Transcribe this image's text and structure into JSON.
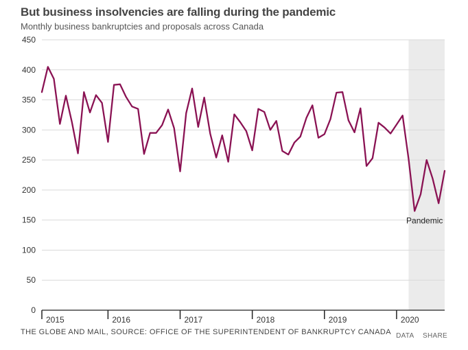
{
  "header": {
    "title": "But business insolvencies are falling during the pandemic",
    "subtitle": "Monthly business bankruptcies and proposals across Canada"
  },
  "footer": {
    "source": "THE GLOBE AND MAIL, SOURCE: OFFICE OF THE SUPERINTENDENT OF BANKRUPTCY CANADA",
    "data_link": "DATA",
    "share_link": "SHARE"
  },
  "colors": {
    "line": "#8a1253",
    "shade": "#ebebeb",
    "grid": "#d9d9d9",
    "axis": "#222222"
  },
  "chart_data": {
    "type": "line",
    "title": "But business insolvencies are falling during the pandemic",
    "subtitle": "Monthly business bankruptcies and proposals across Canada",
    "xlabel": "",
    "ylabel": "",
    "ylim": [
      0,
      450
    ],
    "yticks": [
      0,
      50,
      100,
      150,
      200,
      250,
      300,
      350,
      400,
      450
    ],
    "x_range": [
      0,
      67
    ],
    "xticks": [
      {
        "label": "2015",
        "month_index": 0
      },
      {
        "label": "2016",
        "month_index": 11
      },
      {
        "label": "2017",
        "month_index": 23
      },
      {
        "label": "2018",
        "month_index": 35
      },
      {
        "label": "2019",
        "month_index": 47
      },
      {
        "label": "2020",
        "month_index": 59
      }
    ],
    "grid": true,
    "shaded_region": {
      "label": "Pandemic",
      "from": 61,
      "to": 67
    },
    "series": [
      {
        "name": "Business bankruptcies and proposals",
        "values": [
          363,
          405,
          385,
          310,
          357,
          313,
          261,
          363,
          329,
          358,
          345,
          280,
          375,
          376,
          355,
          339,
          335,
          260,
          295,
          295,
          308,
          334,
          303,
          231,
          328,
          369,
          305,
          354,
          294,
          254,
          291,
          247,
          326,
          313,
          298,
          266,
          335,
          330,
          300,
          315,
          265,
          259,
          279,
          289,
          320,
          341,
          287,
          293,
          318,
          362,
          363,
          316,
          296,
          336,
          240,
          253,
          312,
          304,
          294,
          309,
          324,
          252,
          165,
          193,
          250,
          219,
          178,
          232
        ]
      }
    ]
  }
}
